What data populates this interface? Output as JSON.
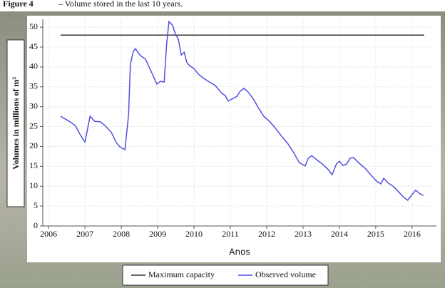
{
  "chart_data": {
    "type": "line",
    "figure_label": "Figure 4",
    "title": "– Volume stored in the last 10 years.",
    "x_label": "Anos",
    "y_label": "Volumes in millions of m³",
    "xlim": [
      2005.84,
      2016.67
    ],
    "xticks": [
      2006,
      2007,
      2008,
      2009,
      2010,
      2011,
      2012,
      2013,
      2014,
      2015,
      2016
    ],
    "ylim": [
      0,
      52
    ],
    "yticks": [
      0,
      5,
      10,
      15,
      20,
      25,
      30,
      35,
      40,
      45,
      50
    ],
    "grid": true,
    "legend": "bottom",
    "series": [
      {
        "name": "Maximum capacity",
        "color": "#333333",
        "x": [
          2006.33,
          2016.33
        ],
        "values": [
          48,
          48
        ]
      },
      {
        "name": "Observed volume",
        "color": "#5050e0",
        "x": [
          2006.33,
          2006.57,
          2006.73,
          2006.88,
          2007.0,
          2007.14,
          2007.27,
          2007.43,
          2007.57,
          2007.73,
          2007.86,
          2007.96,
          2008.1,
          2008.2,
          2008.25,
          2008.33,
          2008.39,
          2008.51,
          2008.67,
          2008.82,
          2008.98,
          2009.08,
          2009.18,
          2009.25,
          2009.31,
          2009.41,
          2009.49,
          2009.57,
          2009.65,
          2009.73,
          2009.8,
          2009.88,
          2010.0,
          2010.12,
          2010.27,
          2010.43,
          2010.59,
          2010.75,
          2010.86,
          2010.94,
          2011.04,
          2011.18,
          2011.27,
          2011.37,
          2011.49,
          2011.65,
          2011.76,
          2011.92,
          2012.08,
          2012.24,
          2012.39,
          2012.59,
          2012.75,
          2012.9,
          2013.06,
          2013.14,
          2013.24,
          2013.37,
          2013.53,
          2013.69,
          2013.8,
          2013.92,
          2014.0,
          2014.1,
          2014.2,
          2014.29,
          2014.39,
          2014.53,
          2014.71,
          2014.86,
          2015.02,
          2015.14,
          2015.22,
          2015.33,
          2015.49,
          2015.65,
          2015.76,
          2015.88,
          2016.0,
          2016.1,
          2016.2,
          2016.31
        ],
        "values": [
          27.6,
          26.3,
          25.3,
          22.8,
          21.1,
          27.6,
          26.3,
          26.2,
          25.1,
          23.5,
          21,
          19.9,
          19.2,
          28,
          40.7,
          43.9,
          44.6,
          43,
          41.9,
          38.9,
          35.7,
          36.4,
          36.2,
          46,
          51.4,
          50.5,
          48.2,
          47,
          43,
          43.7,
          41.2,
          40.3,
          39.6,
          38.2,
          37.1,
          36.2,
          35.3,
          33.5,
          32.8,
          31.4,
          31.9,
          32.6,
          33.9,
          34.6,
          33.7,
          31.7,
          29.9,
          27.6,
          26.3,
          24.6,
          22.8,
          20.6,
          18.3,
          15.9,
          15.1,
          17,
          17.7,
          16.7,
          15.6,
          14.2,
          12.9,
          15.6,
          16.3,
          15.2,
          15.6,
          17,
          17.2,
          15.9,
          14.5,
          12.9,
          11.3,
          10.6,
          12,
          10.9,
          9.9,
          8.4,
          7.3,
          6.5,
          7.9,
          9,
          8.2,
          7.7
        ]
      }
    ]
  }
}
